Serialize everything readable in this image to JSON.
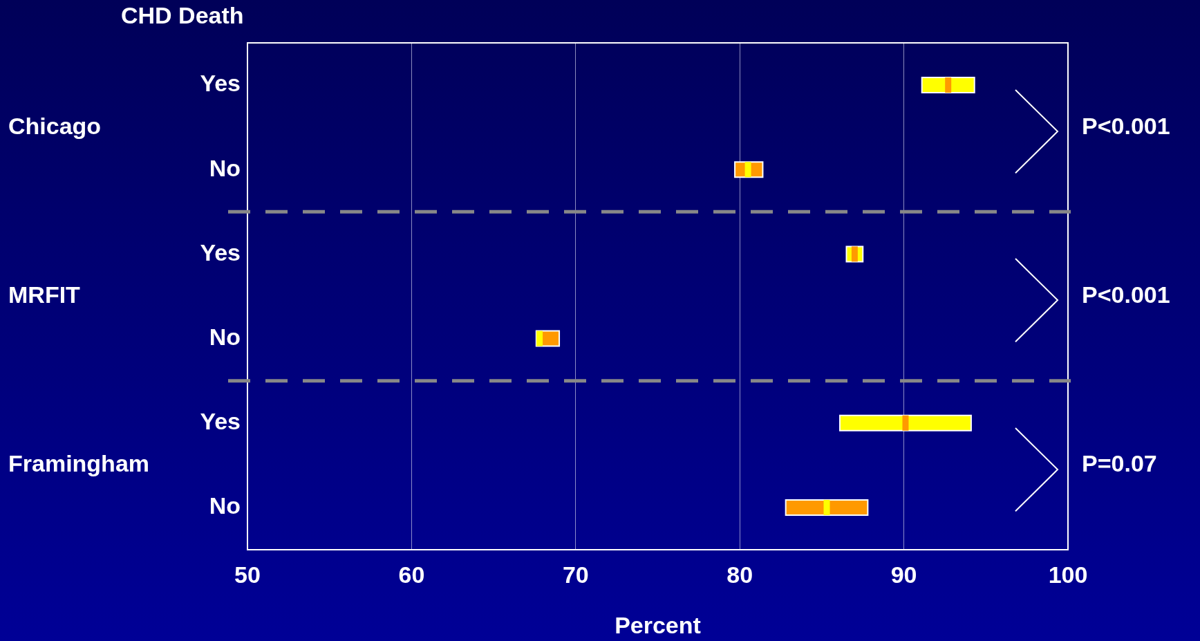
{
  "chart_data": {
    "type": "box",
    "orientation": "horizontal",
    "ylabel": "CHD Death",
    "xlabel": "Percent",
    "categories": [
      "Yes",
      "No",
      "Yes",
      "No",
      "Yes",
      "No"
    ],
    "xlim": [
      50,
      100
    ],
    "xticks": [
      50,
      60,
      70,
      80,
      90,
      100
    ],
    "grid": "x",
    "legend": false,
    "boxes": [
      {
        "low": 91.1,
        "q1": 91.1,
        "median": 92.7,
        "q3": 94.3,
        "high": 94.3
      },
      {
        "low": 79.7,
        "q1": 79.7,
        "median": 80.5,
        "q3": 81.4,
        "high": 81.4
      },
      {
        "low": 86.5,
        "q1": 86.5,
        "median": 87.0,
        "q3": 87.5,
        "high": 87.5
      },
      {
        "low": 67.6,
        "q1": 67.6,
        "median": 67.8,
        "q3": 69.0,
        "high": 69.0
      },
      {
        "low": 86.1,
        "q1": 86.1,
        "median": 90.1,
        "q3": 94.1,
        "high": 94.1
      },
      {
        "low": 82.8,
        "q1": 82.8,
        "median": 85.3,
        "q3": 87.8,
        "high": 87.8
      }
    ],
    "colors": [
      "#ffff00",
      "#ff9900",
      "#ffff00",
      "#ff9900",
      "#ffff00",
      "#ff9900"
    ],
    "annotations": [
      "Chicago",
      "MRFIT",
      "Framingham",
      "P<0.001",
      "P<0.001",
      "P=0.07"
    ]
  }
}
